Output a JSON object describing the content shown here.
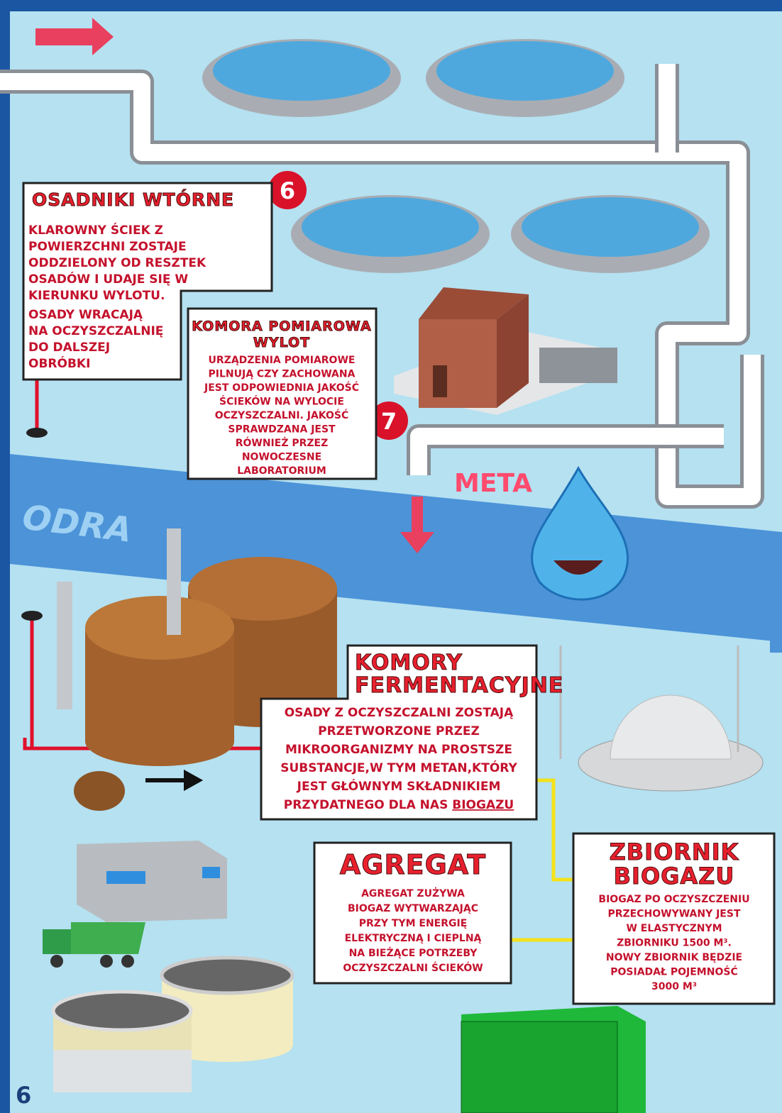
{
  "page_number": "6",
  "badges": [
    "6",
    "7"
  ],
  "meta": "META",
  "river": "ODRA",
  "osadniki": {
    "title": "OSADNIKI WTÓRNE",
    "lines": [
      "KLAROWNY ŚCIEK Z",
      "POWIERZCHNI ZOSTAJE",
      "ODDZIELONY OD RESZTEK",
      "OSADÓW I UDAJE SIĘ W",
      "KIERUNKU WYLOTU.",
      "OSADY WRACAJĄ",
      "NA OCZYSZCZALNIĘ",
      "DO DALSZEJ",
      "OBRÓBKI"
    ]
  },
  "komora": {
    "title": [
      "KOMORA POMIAROWA",
      "WYLOT"
    ],
    "lines": [
      "URZĄDZENIA POMIAROWE",
      "PILNUJĄ CZY ZACHOWANA",
      "JEST ODPOWIEDNIA JAKOŚĆ",
      "ŚCIEKÓW NA WYLOCIE",
      "OCZYSZCZALNI. JAKOŚĆ",
      "SPRAWDZANA JEST",
      "RÓWNIEŻ PRZEZ",
      "NOWOCZESNE",
      "LABORATORIUM"
    ]
  },
  "fermentacja": {
    "title": [
      "KOMORY",
      "FERMENTACYJNE"
    ],
    "lines": [
      "OSADY Z OCZYSZCZALNI ZOSTAJĄ",
      "PRZETWORZONE PRZEZ",
      "MIKROORGANIZMY NA PROSTSZE",
      "SUBSTANCJE,W TYM METAN,KTÓRY",
      "JEST GŁÓWNYM SKŁADNIKIEM"
    ],
    "last_line": "PRZYDATNEGO DLA NAS",
    "last_word": "BIOGAZU"
  },
  "agregat": {
    "title": "AGREGAT",
    "lines": [
      "AGREGAT ZUŻYWA",
      "BIOGAZ WYTWARZAJĄC",
      "PRZY TYM ENERGIĘ",
      "ELEKTRYCZNĄ I CIEPLNĄ",
      "NA BIEŻĄCE POTRZEBY",
      "OCZYSZCZALNI ŚCIEKÓW"
    ]
  },
  "zbiornik": {
    "title": [
      "ZBIORNIK",
      "BIOGAZU"
    ],
    "lines": [
      "BIOGAZ PO OCZYSZCZENIU",
      "PRZECHOWYWANY JEST",
      "W ELASTYCZNYM",
      "ZBIORNIKU 1500 M³.",
      "NOWY ZBIORNIK BĘDZIE",
      "POSIADAŁ POJEMNOŚĆ",
      "3000 M³"
    ]
  }
}
